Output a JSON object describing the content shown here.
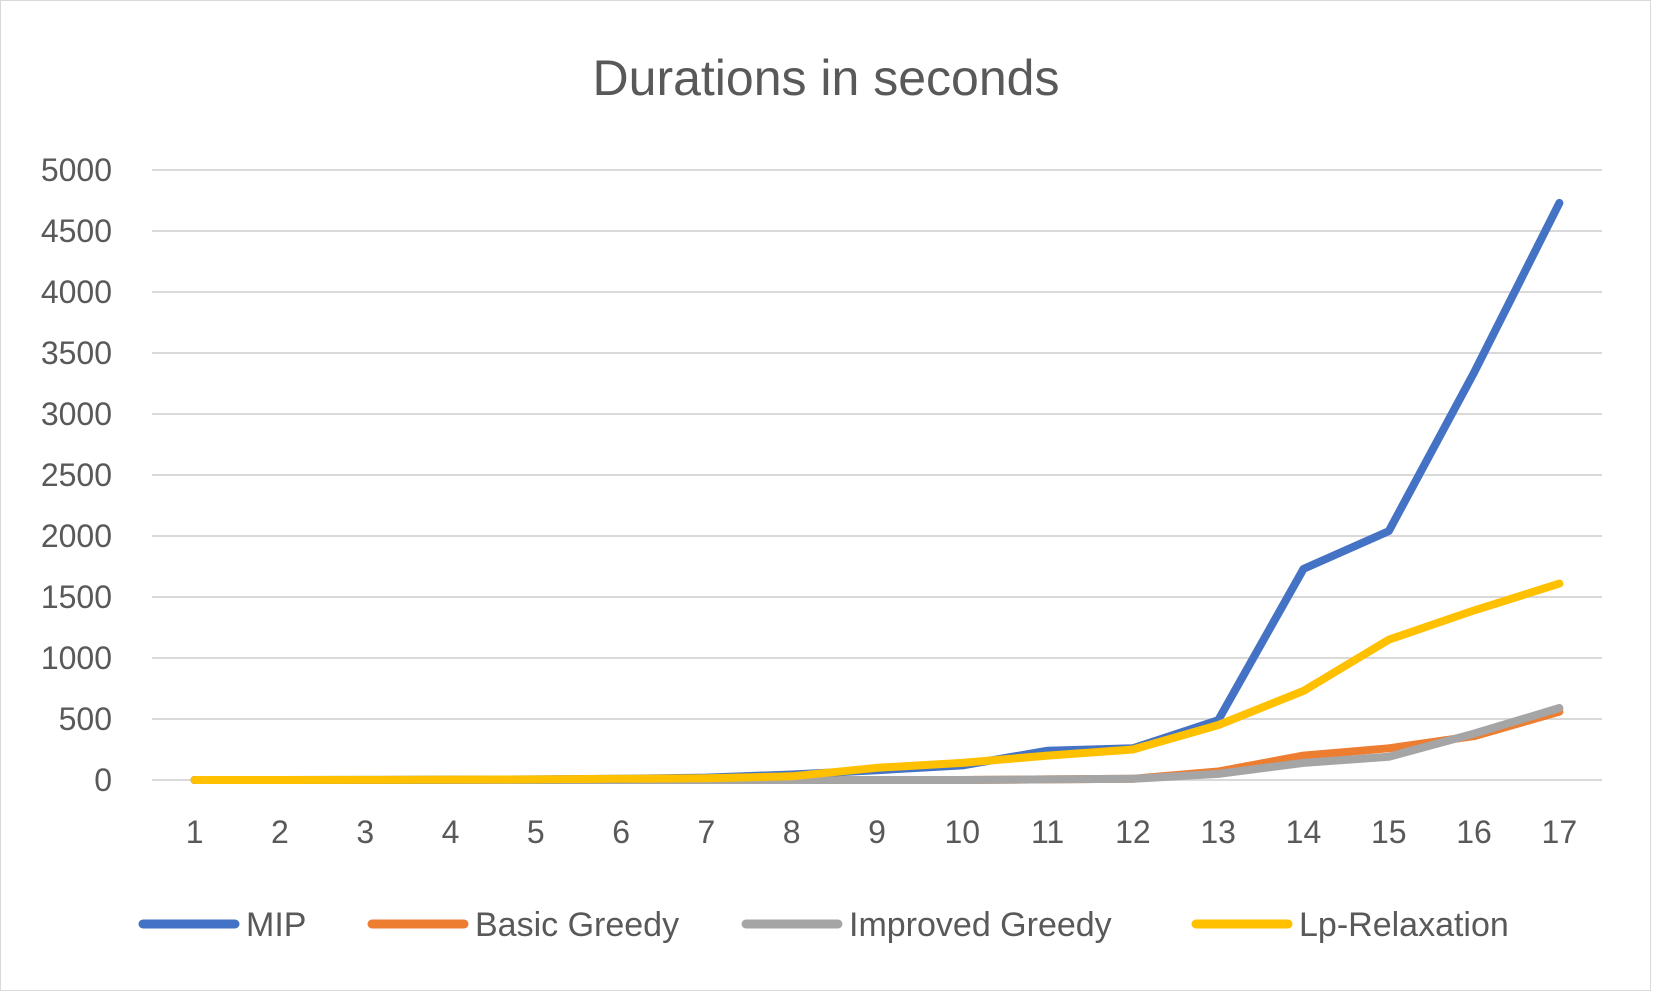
{
  "chart_data": {
    "type": "line",
    "title": "Durations in seconds",
    "xlabel": "",
    "ylabel": "",
    "categories": [
      "1",
      "2",
      "3",
      "4",
      "5",
      "6",
      "7",
      "8",
      "9",
      "10",
      "11",
      "12",
      "13",
      "14",
      "15",
      "16",
      "17"
    ],
    "ylim": [
      0,
      5000
    ],
    "yticks": [
      0,
      500,
      1000,
      1500,
      2000,
      2500,
      3000,
      3500,
      4000,
      4500,
      5000
    ],
    "grid": true,
    "legend_position": "bottom",
    "series": [
      {
        "name": "MIP",
        "color": "#4472c4",
        "values": [
          0,
          0,
          1,
          3,
          5,
          10,
          20,
          45,
          80,
          120,
          240,
          260,
          490,
          1730,
          2040,
          3340,
          4730
        ]
      },
      {
        "name": "Basic Greedy",
        "color": "#ed7d31",
        "values": [
          0,
          0,
          0,
          0,
          0,
          0,
          0,
          0,
          0,
          0,
          5,
          10,
          70,
          200,
          260,
          360,
          560
        ]
      },
      {
        "name": "Improved Greedy",
        "color": "#a5a5a5",
        "values": [
          0,
          0,
          0,
          0,
          0,
          0,
          0,
          0,
          0,
          0,
          5,
          10,
          50,
          140,
          190,
          380,
          590
        ]
      },
      {
        "name": "Lp-Relaxation",
        "color": "#ffc000",
        "values": [
          0,
          0,
          1,
          3,
          5,
          10,
          15,
          30,
          100,
          140,
          200,
          250,
          450,
          730,
          1150,
          1390,
          1610
        ]
      }
    ]
  }
}
